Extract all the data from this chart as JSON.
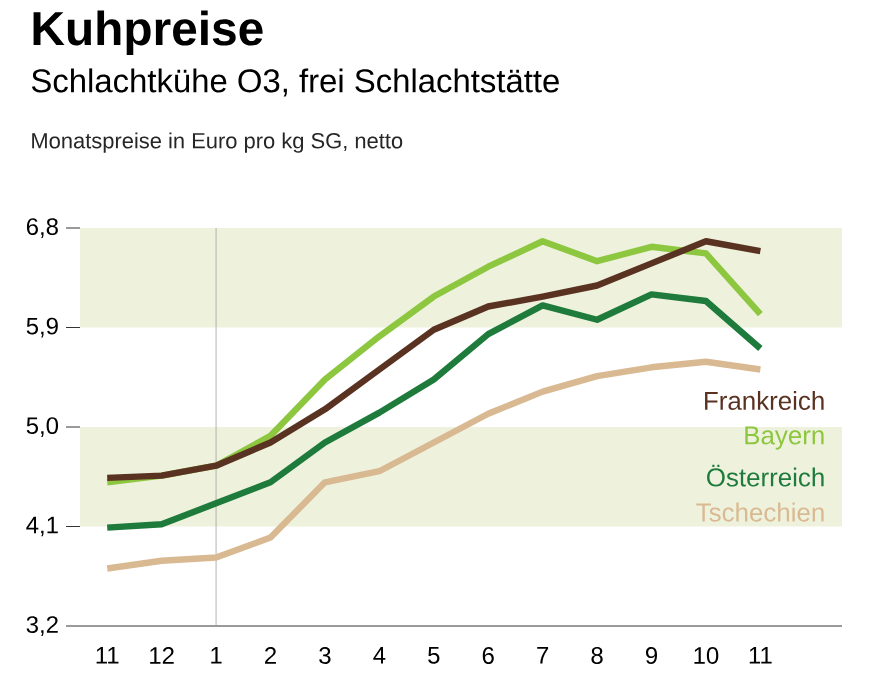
{
  "chart_data": {
    "type": "line",
    "title": "Kuhpreise",
    "subtitle": "Schlachtkühe O3, frei Schlachtstätte",
    "annotations": [
      "Monatspreise in Euro pro kg SG, netto"
    ],
    "categories": [
      "11",
      "12",
      "1",
      "2",
      "3",
      "4",
      "5",
      "6",
      "7",
      "8",
      "9",
      "10",
      "11"
    ],
    "ylim": [
      3.2,
      6.8
    ],
    "yticks": [
      {
        "value": 3.2,
        "label": "3,2"
      },
      {
        "value": 4.1,
        "label": "4,1"
      },
      {
        "value": 5.0,
        "label": "5,0"
      },
      {
        "value": 5.9,
        "label": "5,9"
      },
      {
        "value": 6.8,
        "label": "6,8"
      }
    ],
    "bands": [
      {
        "axis": "y",
        "from": 4.1,
        "to": 5.0,
        "color": "#eef2dc"
      },
      {
        "axis": "y",
        "from": 5.9,
        "to": 6.8,
        "color": "#eef2dc"
      }
    ],
    "ref_lines": [
      {
        "axis": "x",
        "value": "1",
        "color": "#a0a0a0"
      }
    ],
    "legend": "right",
    "series": [
      {
        "name": "Frankreich",
        "color": "#5a3222",
        "values": [
          4.54,
          4.56,
          4.65,
          4.86,
          5.16,
          5.52,
          5.88,
          6.09,
          6.18,
          6.28,
          6.48,
          6.68,
          6.59
        ]
      },
      {
        "name": "Bayern",
        "color": "#8dc63f",
        "values": [
          4.5,
          4.56,
          4.65,
          4.92,
          5.43,
          5.82,
          6.18,
          6.45,
          6.68,
          6.5,
          6.63,
          6.57,
          6.02
        ]
      },
      {
        "name": "Österreich",
        "color": "#1e7b3c",
        "values": [
          4.09,
          4.12,
          4.31,
          4.5,
          4.86,
          5.13,
          5.43,
          5.84,
          6.1,
          5.97,
          6.2,
          6.14,
          5.71
        ]
      },
      {
        "name": "Tschechien",
        "color": "#d9b992",
        "values": [
          3.72,
          3.79,
          3.82,
          4.0,
          4.5,
          4.6,
          4.86,
          5.12,
          5.32,
          5.46,
          5.54,
          5.59,
          5.52
        ]
      }
    ]
  }
}
